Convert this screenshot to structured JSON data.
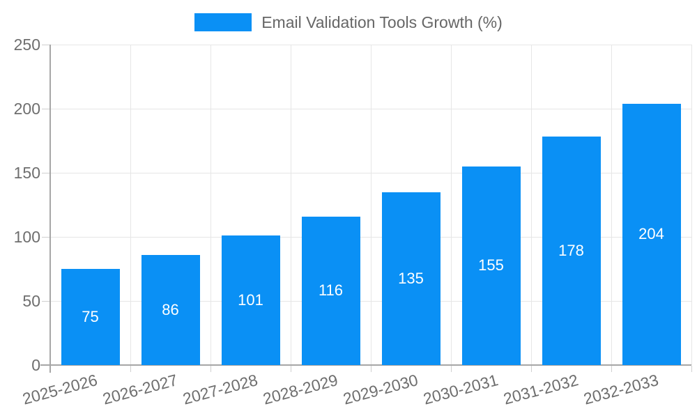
{
  "legend": {
    "label": "Email Validation Tools Growth (%)"
  },
  "chart_data": {
    "type": "bar",
    "title": "Email Validation Tools Growth (%)",
    "categories": [
      "2025-2026",
      "2026-2027",
      "2027-2028",
      "2028-2029",
      "2029-2030",
      "2030-2031",
      "2031-2032",
      "2032-2033"
    ],
    "values": [
      75,
      86,
      101,
      116,
      135,
      155,
      178,
      204
    ],
    "xlabel": "",
    "ylabel": "",
    "ylim": [
      0,
      250
    ],
    "yticks": [
      0,
      50,
      100,
      150,
      200,
      250
    ],
    "grid": true,
    "legend_position": "top-center",
    "x_tick_rotation_deg": -15,
    "bar_color": "#0a90f5",
    "value_label_color": "#ffffff",
    "tick_label_color": "#6e6e6e",
    "grid_color": "#e6e6e6",
    "tick_color": "#cfcfcf",
    "axis_color": "#a6a6a6",
    "background_color": "#ffffff"
  }
}
